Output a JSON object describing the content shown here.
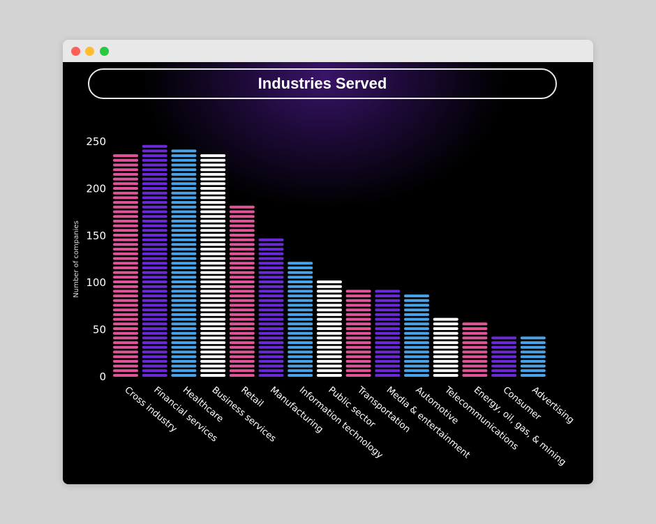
{
  "window": {
    "controls": [
      "close",
      "minimize",
      "zoom"
    ]
  },
  "chart_data": {
    "type": "bar",
    "title": "Industries Served",
    "xlabel": "",
    "ylabel": "Number of companies",
    "ylim": [
      0,
      250
    ],
    "yticks": [
      0,
      50,
      100,
      150,
      200,
      250
    ],
    "grid": false,
    "legend": "none",
    "categories": [
      "Cross industry",
      "Financial services",
      "Healthcare",
      "Business services",
      "Retail",
      "Manufacturing",
      "Information technology",
      "Public sector",
      "Transportation",
      "Media & entertainment",
      "Automotive",
      "Telecommunications",
      "Energy, oil, gas, & mining",
      "Consumer",
      "Advertising"
    ],
    "values": [
      238,
      251,
      244,
      240,
      186,
      148,
      124,
      102,
      95,
      93,
      90,
      64,
      62,
      45,
      44
    ],
    "colors": [
      "#e0559a",
      "#6a2ad8",
      "#4aa3e8",
      "#ffffff"
    ]
  }
}
